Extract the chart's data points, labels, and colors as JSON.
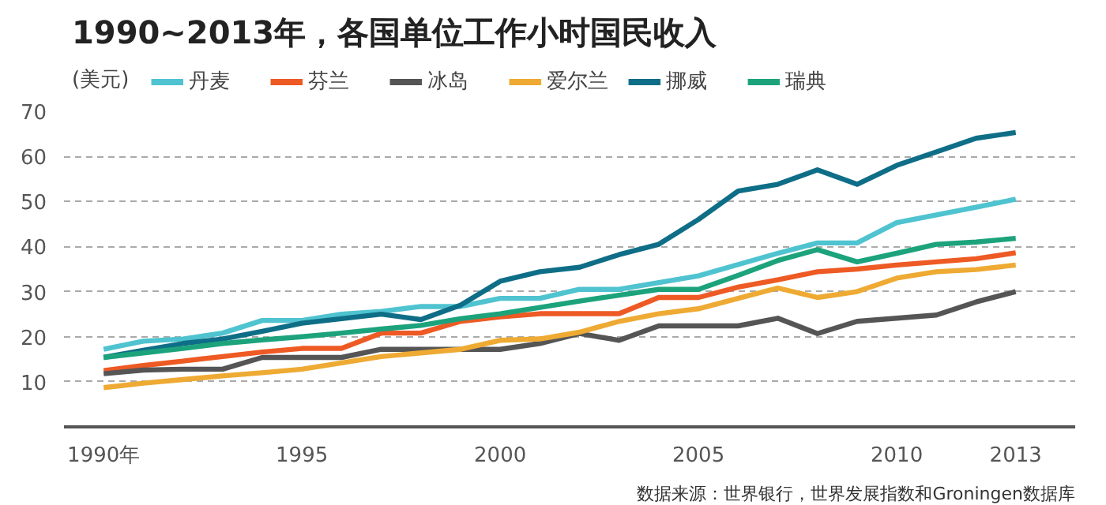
{
  "chart_data": {
    "type": "line",
    "title": "1990~2013年，各国单位工作小时国民收入",
    "ylabel": "(美元)",
    "x": [
      1990,
      1991,
      1992,
      1993,
      1994,
      1995,
      1996,
      1997,
      1998,
      1999,
      2000,
      2001,
      2002,
      2003,
      2004,
      2005,
      2006,
      2007,
      2008,
      2009,
      2010,
      2011,
      2012,
      2013
    ],
    "xlim": [
      1989,
      2014.5
    ],
    "xticks": [
      {
        "value": 1990,
        "label": "1990年"
      },
      1995,
      2000,
      2005,
      2010,
      2013
    ],
    "ylim": [
      0,
      70
    ],
    "yticks": [
      10,
      20,
      30,
      40,
      50,
      60,
      70
    ],
    "grid": "y",
    "legend": "top left",
    "line_style": "solid",
    "series": [
      {
        "name": "丹麦",
        "color": "#4fc3d0",
        "values": [
          17.2,
          19,
          19.5,
          20.8,
          23.6,
          23.6,
          25,
          25.6,
          26.7,
          26.7,
          28.5,
          28.5,
          30.5,
          30.5,
          32,
          33.5,
          36,
          38.5,
          40.8,
          40.8,
          45.3,
          47,
          48.7,
          50.5
        ]
      },
      {
        "name": "芬兰",
        "color": "#ee5a24",
        "values": [
          12.5,
          13.6,
          14.6,
          15.6,
          16.6,
          17.4,
          17.4,
          20.8,
          20.8,
          23.4,
          24.4,
          25.1,
          25.1,
          25.1,
          28.7,
          28.7,
          31,
          32.6,
          34.4,
          35,
          35.9,
          36.6,
          37.3,
          38.6
        ]
      },
      {
        "name": "冰岛",
        "color": "#555555",
        "values": [
          11.8,
          12.6,
          12.8,
          12.8,
          15.4,
          15.4,
          15.4,
          17.2,
          17.2,
          17.2,
          17.2,
          18.5,
          20.7,
          19.2,
          22.4,
          22.4,
          22.4,
          24.1,
          20.7,
          23.4,
          24.1,
          24.8,
          27.7,
          30
        ]
      },
      {
        "name": "爱尔兰",
        "color": "#eeaa33",
        "values": [
          8.7,
          9.7,
          10.5,
          11.3,
          12,
          12.8,
          14.2,
          15.6,
          16.4,
          17.2,
          19.2,
          19.5,
          21,
          23.4,
          25.1,
          26.2,
          28.5,
          30.8,
          28.7,
          30,
          33,
          34.4,
          34.9,
          35.9
        ]
      },
      {
        "name": "挪威",
        "color": "#0f6e87",
        "values": [
          15.4,
          17,
          18.5,
          19.5,
          21.2,
          23,
          24,
          25,
          23.8,
          27,
          32.3,
          34.4,
          35.4,
          38.2,
          40.5,
          46,
          52.3,
          53.8,
          57,
          53.8,
          58,
          61,
          64,
          65.3
        ]
      },
      {
        "name": "瑞典",
        "color": "#1ca37c",
        "values": [
          15.4,
          16.4,
          17.4,
          18.5,
          19.3,
          20,
          20.8,
          21.7,
          22.5,
          24,
          25.1,
          26.5,
          27.9,
          29.2,
          30.5,
          30.5,
          33.6,
          36.9,
          39.3,
          36.6,
          38.5,
          40.5,
          41,
          41.8
        ]
      }
    ],
    "annotations": [
      "数据来源：世界银行，世界发展指数和Groningen数据库"
    ]
  }
}
